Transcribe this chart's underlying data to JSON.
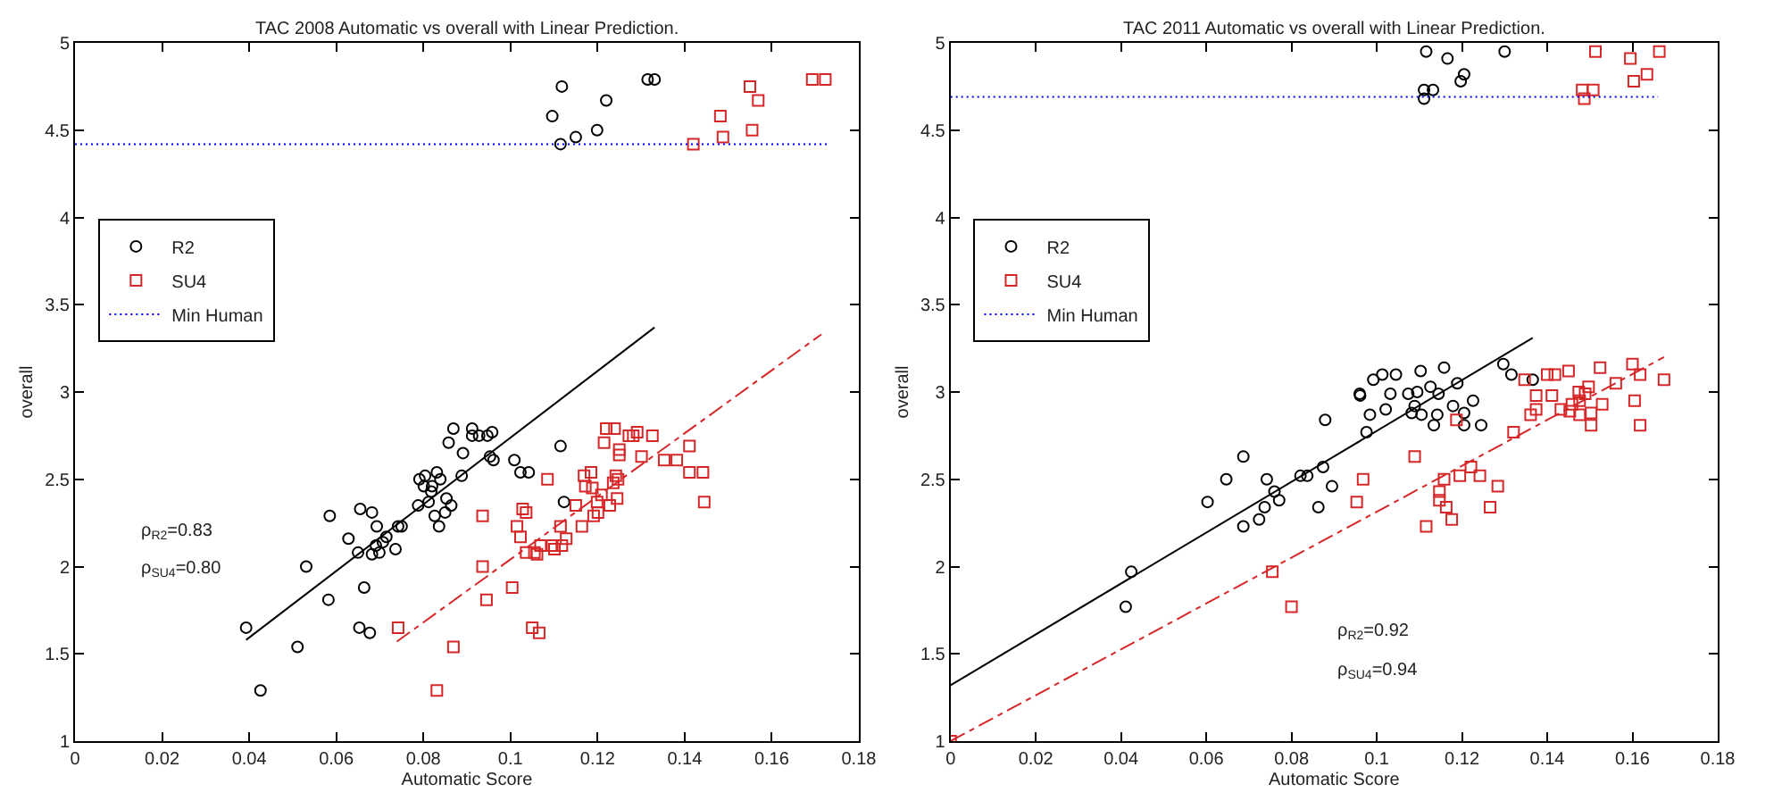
{
  "chart_data": [
    {
      "type": "scatter",
      "title": "TAC 2008 Automatic vs overall with Linear Prediction.",
      "xlabel": "Automatic Score",
      "ylabel": "overall",
      "xlim": [
        0,
        0.18
      ],
      "xticks": [
        0,
        0.02,
        0.04,
        0.06,
        0.08,
        0.1,
        0.12,
        0.14,
        0.16,
        0.18
      ],
      "ylim": [
        1,
        5
      ],
      "yticks": [
        1,
        1.5,
        2,
        2.5,
        3,
        3.5,
        4,
        4.5,
        5
      ],
      "grid": false,
      "legend": "left",
      "annotations": [
        "ρ$_{R2}$=0.83",
        "ρ$_{SU4}$=0.80"
      ],
      "series": [
        {
          "name": "R2",
          "type": "scatter",
          "marker": "circle",
          "color": "#000000",
          "x": [
            0.0393,
            0.0426,
            0.0511,
            0.0531,
            0.0582,
            0.0585,
            0.0628,
            0.065,
            0.0655,
            0.0653,
            0.0664,
            0.0677,
            0.0682,
            0.0682,
            0.0693,
            0.0691,
            0.0699,
            0.0707,
            0.0715,
            0.0736,
            0.0742,
            0.075,
            0.0788,
            0.0791,
            0.0801,
            0.0804,
            0.0812,
            0.0818,
            0.082,
            0.0826,
            0.0831,
            0.0836,
            0.0839,
            0.085,
            0.0853,
            0.0864,
            0.0858,
            0.0869,
            0.0891,
            0.0888,
            0.0912,
            0.0912,
            0.0928,
            0.0947,
            0.0958,
            0.0953,
            0.0961,
            0.1009,
            0.1023,
            0.1042,
            0.1115,
            0.1123,
            0.1096,
            0.1118,
            0.1115,
            0.115,
            0.1199,
            0.122,
            0.1315,
            0.1331
          ],
          "values": [
            1.65,
            1.29,
            1.54,
            2.0,
            1.81,
            2.29,
            2.16,
            2.08,
            2.33,
            1.65,
            1.88,
            1.62,
            2.31,
            2.07,
            2.23,
            2.12,
            2.08,
            2.14,
            2.17,
            2.1,
            2.23,
            2.23,
            2.35,
            2.5,
            2.46,
            2.52,
            2.37,
            2.43,
            2.46,
            2.29,
            2.54,
            2.23,
            2.5,
            2.31,
            2.39,
            2.35,
            2.71,
            2.79,
            2.65,
            2.52,
            2.79,
            2.75,
            2.75,
            2.75,
            2.77,
            2.63,
            2.61,
            2.61,
            2.54,
            2.54,
            2.69,
            2.37,
            4.58,
            4.75,
            4.42,
            4.46,
            4.5,
            4.67,
            4.79,
            4.79
          ]
        },
        {
          "name": "SU4",
          "type": "scatter",
          "marker": "square",
          "color": "#d62728",
          "x": [
            0.0742,
            0.0869,
            0.0831,
            0.0936,
            0.0936,
            0.0945,
            0.1004,
            0.1015,
            0.1023,
            0.1028,
            0.1036,
            0.1036,
            0.105,
            0.1055,
            0.1061,
            0.1066,
            0.1069,
            0.1085,
            0.1096,
            0.1101,
            0.1115,
            0.1118,
            0.1128,
            0.115,
            0.1164,
            0.1169,
            0.1172,
            0.1185,
            0.1188,
            0.1191,
            0.1199,
            0.1201,
            0.1209,
            0.1215,
            0.122,
            0.1228,
            0.1236,
            0.1239,
            0.1242,
            0.1245,
            0.1247,
            0.125,
            0.125,
            0.1272,
            0.1282,
            0.1291,
            0.1301,
            0.1326,
            0.1353,
            0.1382,
            0.1411,
            0.1411,
            0.1442,
            0.1445,
            0.142,
            0.1482,
            0.1488,
            0.155,
            0.1555,
            0.1569,
            0.1693,
            0.1723
          ],
          "values": [
            1.65,
            1.54,
            1.29,
            2.29,
            2.0,
            1.81,
            1.88,
            2.23,
            2.17,
            2.33,
            2.31,
            2.08,
            1.65,
            2.08,
            2.07,
            1.62,
            2.12,
            2.5,
            2.12,
            2.1,
            2.23,
            2.12,
            2.16,
            2.35,
            2.23,
            2.52,
            2.46,
            2.54,
            2.45,
            2.29,
            2.37,
            2.31,
            2.41,
            2.71,
            2.79,
            2.35,
            2.48,
            2.79,
            2.52,
            2.39,
            2.5,
            2.67,
            2.64,
            2.75,
            2.75,
            2.77,
            2.63,
            2.75,
            2.61,
            2.61,
            2.69,
            2.54,
            2.54,
            2.37,
            4.42,
            4.58,
            4.46,
            4.75,
            4.5,
            4.67,
            4.79,
            4.79
          ]
        },
        {
          "name": "Min Human",
          "type": "line",
          "line_style": "dotted",
          "color": "#0000ff",
          "x": [
            0,
            0.173
          ],
          "values": [
            4.42,
            4.42
          ]
        },
        {
          "type": "line",
          "line_style": "solid",
          "color": "#000000",
          "x": [
            0.0393,
            0.1331
          ],
          "values": [
            1.58,
            3.37
          ]
        },
        {
          "type": "line",
          "line_style": "dashdot",
          "color": "#d62728",
          "x": [
            0.0739,
            0.1714
          ],
          "values": [
            1.57,
            3.33
          ]
        }
      ]
    },
    {
      "type": "scatter",
      "title": "TAC 2011 Automatic vs overall with Linear Prediction.",
      "xlabel": "Automatic Score",
      "ylabel": "overall",
      "xlim": [
        0,
        0.18
      ],
      "xticks": [
        0,
        0.02,
        0.04,
        0.06,
        0.08,
        0.1,
        0.12,
        0.14,
        0.16,
        0.18
      ],
      "ylim": [
        1,
        5
      ],
      "yticks": [
        1,
        1.5,
        2,
        2.5,
        3,
        3.5,
        4,
        4.5,
        5
      ],
      "grid": false,
      "legend": "left",
      "annotations": [
        "ρ$_{R2}$=0.92",
        "ρ$_{SU4}$=0.94"
      ],
      "series": [
        {
          "name": "R2",
          "type": "scatter",
          "marker": "circle",
          "color": "#000000",
          "x": [
            0.096,
            0.0992,
            0.1013,
            0.1032,
            0.1045,
            0.1074,
            0.1095,
            0.1103,
            0.1126,
            0.1145,
            0.1158,
            0.1189,
            0.1297,
            0.1316,
            0.1366,
            0.0411,
            0.0424,
            0.0603,
            0.0647,
            0.0687,
            0.0687,
            0.0724,
            0.0737,
            0.0742,
            0.076,
            0.0771,
            0.0821,
            0.0837,
            0.0863,
            0.0874,
            0.0879,
            0.0895,
            0.0961,
            0.0976,
            0.0984,
            0.1021,
            0.1082,
            0.1089,
            0.1105,
            0.1134,
            0.1142,
            0.1179,
            0.1205,
            0.1205,
            0.1226,
            0.1245,
            0.1111,
            0.1116,
            0.1111,
            0.1132,
            0.1166,
            0.1197,
            0.1205,
            0.13
          ],
          "values": [
            2.99,
            3.07,
            3.1,
            2.99,
            3.1,
            2.99,
            3.0,
            3.12,
            3.03,
            2.99,
            3.14,
            3.05,
            3.16,
            3.1,
            3.07,
            1.77,
            1.97,
            2.37,
            2.5,
            2.63,
            2.23,
            2.27,
            2.34,
            2.5,
            2.43,
            2.38,
            2.52,
            2.52,
            2.34,
            2.57,
            2.84,
            2.46,
            2.98,
            2.77,
            2.87,
            2.9,
            2.88,
            2.92,
            2.87,
            2.81,
            2.87,
            2.92,
            2.88,
            2.81,
            2.95,
            2.81,
            4.73,
            4.95,
            4.68,
            4.73,
            4.91,
            4.78,
            4.82,
            4.95
          ]
        },
        {
          "name": "SU4",
          "type": "scatter",
          "marker": "square",
          "color": "#d62728",
          "x": [
            0,
            0.0755,
            0.08,
            0.0953,
            0.0968,
            0.1089,
            0.1116,
            0.1147,
            0.1147,
            0.1158,
            0.1163,
            0.1176,
            0.1187,
            0.1195,
            0.1221,
            0.1242,
            0.1266,
            0.1284,
            0.1321,
            0.1361,
            0.1374,
            0.1374,
            0.1411,
            0.1432,
            0.1453,
            0.1458,
            0.1476,
            0.1476,
            0.1489,
            0.1503,
            0.1503,
            0.1529,
            0.1605,
            0.1618,
            0.1347,
            0.14,
            0.1418,
            0.145,
            0.1474,
            0.1497,
            0.1524,
            0.1561,
            0.16,
            0.1618,
            0.1674,
            0.1482,
            0.1487,
            0.1508,
            0.1513,
            0.1595,
            0.1603,
            0.1634,
            0.1663
          ],
          "values": [
            1.0,
            1.97,
            1.77,
            2.37,
            2.5,
            2.63,
            2.23,
            2.43,
            2.38,
            2.5,
            2.34,
            2.27,
            2.84,
            2.52,
            2.57,
            2.52,
            2.34,
            2.46,
            2.77,
            2.87,
            2.9,
            2.98,
            2.98,
            2.9,
            2.89,
            2.93,
            2.87,
            2.95,
            2.99,
            2.88,
            2.81,
            2.93,
            2.95,
            2.81,
            3.07,
            3.1,
            3.1,
            3.12,
            3.0,
            3.03,
            3.14,
            3.05,
            3.16,
            3.1,
            3.07,
            4.73,
            4.68,
            4.73,
            4.95,
            4.91,
            4.78,
            4.82,
            4.95
          ]
        },
        {
          "name": "Min Human",
          "type": "line",
          "line_style": "dotted",
          "color": "#0000ff",
          "x": [
            0,
            0.166
          ],
          "values": [
            4.69,
            4.69
          ]
        },
        {
          "type": "line",
          "line_style": "solid",
          "color": "#000000",
          "x": [
            0,
            0.1366
          ],
          "values": [
            1.32,
            3.31
          ]
        },
        {
          "type": "line",
          "line_style": "dashdot",
          "color": "#d62728",
          "x": [
            0,
            0.1674
          ],
          "values": [
            1.0,
            3.2
          ]
        }
      ]
    }
  ]
}
